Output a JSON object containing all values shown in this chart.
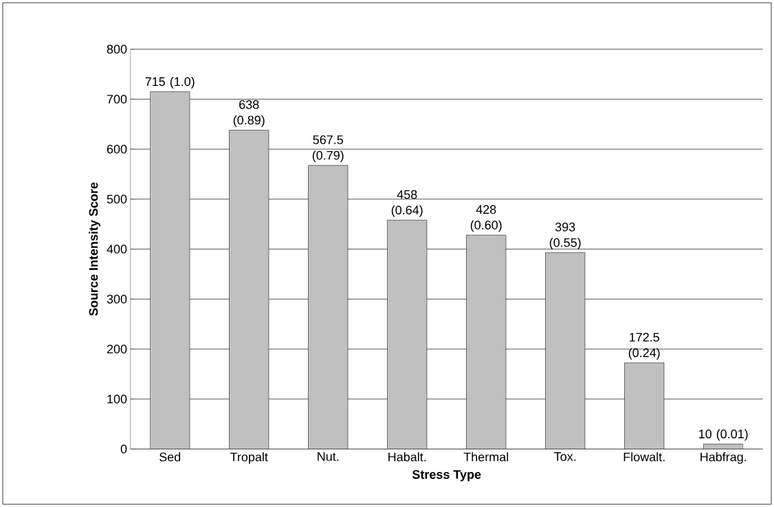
{
  "chart_data": {
    "type": "bar",
    "xlabel": "Stress Type",
    "ylabel": "Source Intensity Score",
    "categories": [
      "Sed",
      "Tropalt",
      "Nut.",
      "Habalt.",
      "Thermal",
      "Tox.",
      "Flowalt.",
      "Habfrag."
    ],
    "values": [
      715,
      638,
      567.5,
      458,
      428,
      393,
      172.5,
      10
    ],
    "value_labels": [
      "715 (1.0)",
      "638 (0.89)",
      "567.5 (0.79)",
      "458 (0.64)",
      "428 (0.60)",
      "393 (0.55)",
      "172.5 (0.24)",
      "10 (0.01)"
    ],
    "color": "#c0c0c0",
    "ylim": [
      0,
      800
    ],
    "yticks": [
      0,
      100,
      200,
      300,
      400,
      500,
      600,
      700,
      800
    ],
    "grid": "y"
  }
}
